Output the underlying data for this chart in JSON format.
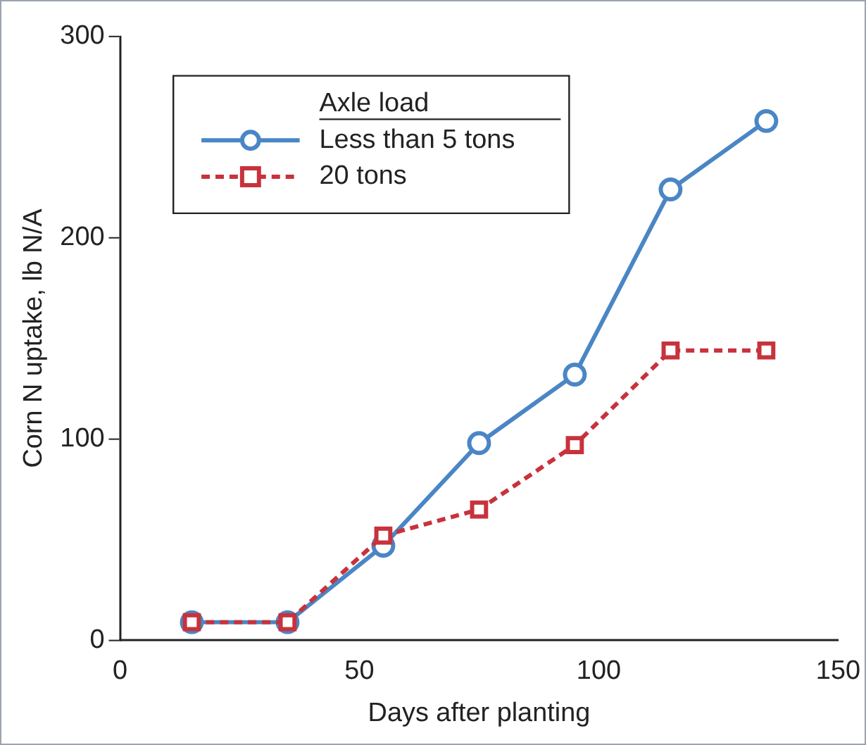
{
  "chart_data": {
    "type": "line",
    "xlabel": "Days after planting",
    "ylabel": "Corn N uptake, lb N/A",
    "legend_title": "Axle load",
    "legend": "top left",
    "grid": false,
    "x": [
      15,
      35,
      55,
      75,
      95,
      115,
      135
    ],
    "xlim": [
      0,
      150
    ],
    "xticks": [
      0,
      50,
      100,
      150
    ],
    "ylim": [
      0,
      300
    ],
    "yticks": [
      0,
      100,
      200,
      300
    ],
    "series": [
      {
        "name": "Less than 5 tons",
        "color": "#4a86c5",
        "marker": "circle",
        "line_style": "solid",
        "values": [
          9,
          9,
          47,
          98,
          132,
          224,
          258
        ]
      },
      {
        "name": "20 tons",
        "color": "#c8323c",
        "marker": "square",
        "line_style": "dashed",
        "values": [
          9,
          9,
          52,
          65,
          97,
          144,
          144
        ]
      }
    ]
  }
}
